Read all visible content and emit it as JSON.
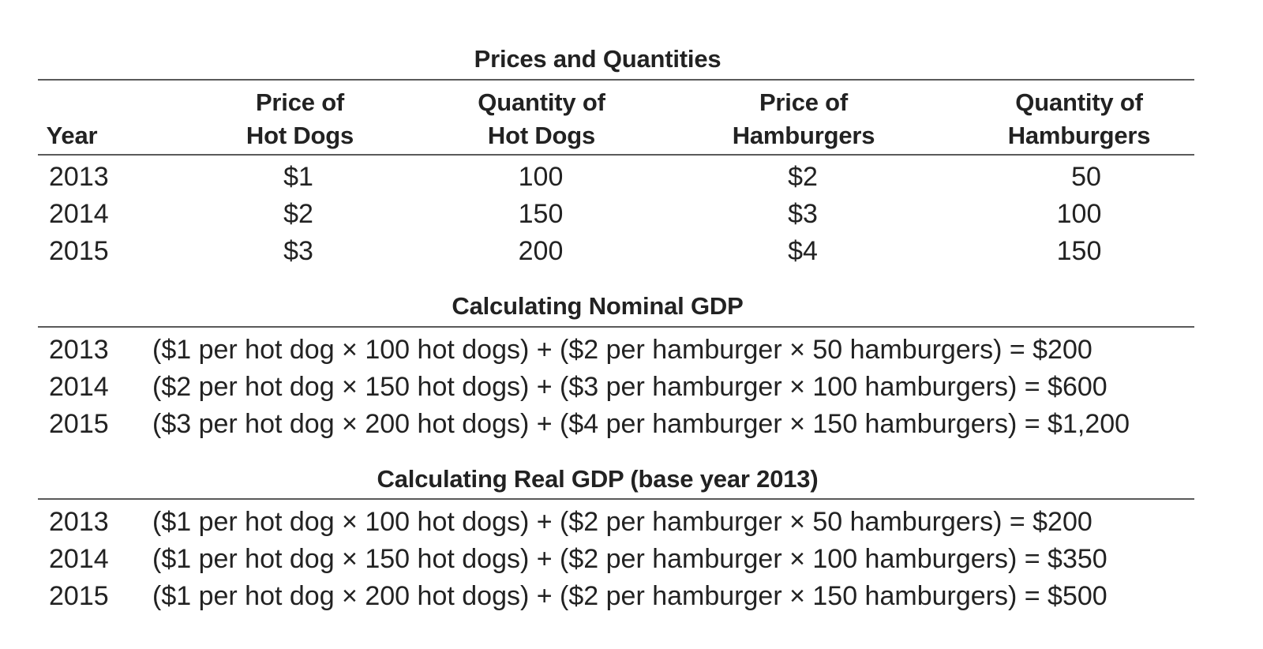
{
  "sections": {
    "prices_title": "Prices and Quantities",
    "nominal_title": "Calculating Nominal GDP",
    "real_title": "Calculating Real GDP (base year 2013)"
  },
  "table": {
    "headers": {
      "year": "Year",
      "price_hot_dogs": [
        "Price of",
        "Hot Dogs"
      ],
      "qty_hot_dogs": [
        "Quantity of",
        "Hot Dogs"
      ],
      "price_hamburgers": [
        "Price of",
        "Hamburgers"
      ],
      "qty_hamburgers": [
        "Quantity of",
        "Hamburgers"
      ]
    },
    "rows": [
      [
        "2013",
        "$1",
        "100",
        "$2",
        "50"
      ],
      [
        "2014",
        "$2",
        "150",
        "$3",
        "100"
      ],
      [
        "2015",
        "$3",
        "200",
        "$4",
        "150"
      ]
    ]
  },
  "nominal": [
    {
      "year": "2013",
      "formula": "($1 per hot dog × 100 hot dogs) + ($2 per hamburger × 50 hamburgers) = $200"
    },
    {
      "year": "2014",
      "formula": "($2 per hot dog × 150 hot dogs) + ($3 per hamburger × 100 hamburgers) = $600"
    },
    {
      "year": "2015",
      "formula": "($3 per hot dog × 200 hot dogs) + ($4 per hamburger × 150 hamburgers) = $1,200"
    }
  ],
  "real": [
    {
      "year": "2013",
      "formula": "($1 per hot dog × 100 hot dogs) + ($2 per hamburger × 50 hamburgers) = $200"
    },
    {
      "year": "2014",
      "formula": "($1 per hot dog × 150 hot dogs) + ($2 per hamburger × 100 hamburgers) = $350"
    },
    {
      "year": "2015",
      "formula": "($1 per hot dog × 200 hot dogs) + ($2 per hamburger × 150 hamburgers) = $500"
    }
  ]
}
